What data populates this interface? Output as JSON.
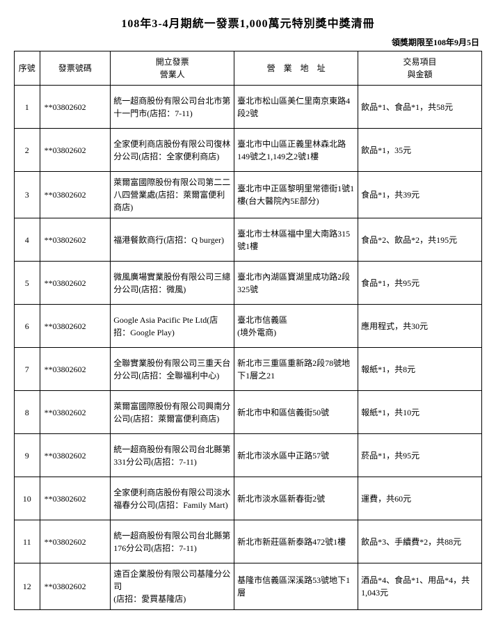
{
  "title": "108年3-4月期統一發票1,000萬元特別獎中獎清冊",
  "deadline": "領獎期限至108年9月5日",
  "header": {
    "seq": "序號",
    "ticket": "發票號碼",
    "issuer": "開立發票\n營業人",
    "address": "營　業　地　址",
    "item": "交易項目\n與金額"
  },
  "rows": [
    {
      "seq": "1",
      "ticket": "**03802602",
      "issuer": "統一超商股份有限公司台北市第十一門市(店招：7-11)",
      "address": "臺北市松山區美仁里南京東路4段2號",
      "item": "飲品*1、食品*1，共58元"
    },
    {
      "seq": "2",
      "ticket": "**03802602",
      "issuer": "全家便利商店股份有限公司復林分公司(店招：全家便利商店)",
      "address": "臺北市中山區正義里林森北路149號之1,149之2號1樓",
      "item": "飲品*1，35元"
    },
    {
      "seq": "3",
      "ticket": "**03802602",
      "issuer": "萊爾富國際股份有限公司第二二八四營業處(店招：萊爾富便利商店)",
      "address": "臺北市中正區黎明里常德街1號1樓(台大醫院內5E部分)",
      "item": "食品*1，共39元"
    },
    {
      "seq": "4",
      "ticket": "**03802602",
      "issuer": "福港餐飲商行(店招：Q burger)",
      "address": "臺北市士林區福中里大南路315號1樓",
      "item": "食品*2、飲品*2，共195元"
    },
    {
      "seq": "5",
      "ticket": "**03802602",
      "issuer": "微風廣場實業股份有限公司三總分公司(店招：微風)",
      "address": "臺北市內湖區寶湖里成功路2段325號",
      "item": "食品*1，共95元"
    },
    {
      "seq": "6",
      "ticket": "**03802602",
      "issuer": "Google Asia Pacific Pte Ltd(店招：Google Play)",
      "address": "臺北市信義區\n(境外電商)",
      "item": "應用程式，共30元"
    },
    {
      "seq": "7",
      "ticket": "**03802602",
      "issuer": "全聯實業股份有限公司三重天台分公司(店招：全聯福利中心)",
      "address": "新北市三重區重新路2段78號地下1層之21",
      "item": "報紙*1，共8元"
    },
    {
      "seq": "8",
      "ticket": "**03802602",
      "issuer": "萊爾富國際股份有限公司興南分公司(店招：萊爾富便利商店)",
      "address": "新北市中和區信義街50號",
      "item": "報紙*1，共10元"
    },
    {
      "seq": "9",
      "ticket": "**03802602",
      "issuer": "統一超商股份有限公司台北縣第331分公司(店招：7-11)",
      "address": "新北市淡水區中正路57號",
      "item": "菸品*1，共95元"
    },
    {
      "seq": "10",
      "ticket": "**03802602",
      "issuer": "全家便利商店股份有限公司淡水福春分公司(店招：Family Mart)",
      "address": "新北市淡水區新春街2號",
      "item": "運費，共60元"
    },
    {
      "seq": "11",
      "ticket": "**03802602",
      "issuer": "統一超商股份有限公司台北縣第176分公司(店招：7-11)",
      "address": "新北市新莊區新泰路472號1樓",
      "item": "飲品*3、手續費*2，共88元"
    },
    {
      "seq": "12",
      "ticket": "**03802602",
      "issuer": "遠百企業股份有限公司基隆分公司\n(店招：愛買基隆店)",
      "address": "基隆市信義區深溪路53號地下1層",
      "item": "酒品*4、食品*1、用品*4，共1,043元"
    }
  ]
}
